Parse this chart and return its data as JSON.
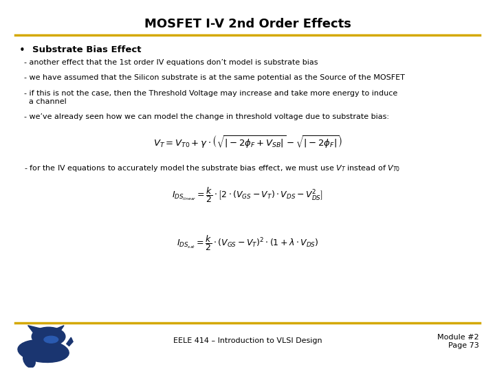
{
  "title": "MOSFET I-V 2nd Order Effects",
  "title_fontsize": 13,
  "title_fontweight": "bold",
  "bg_color": "#ffffff",
  "gold_line_color": "#D4A800",
  "bullet_header": "Substrate Bias Effect",
  "bullet_fontsize": 9.5,
  "body_fontsize": 8.0,
  "lines": [
    "- another effect that the 1st order IV equations don’t model is substrate bias",
    "- we have assumed that the Silicon substrate is at the same potential as the Source of the MOSFET",
    "- if this is not the case, then the Threshold Voltage may increase and take more energy to induce\n  a channel",
    "- we’ve already seen how we can model the change in threshold voltage due to substrate bias:"
  ],
  "line_after_eq1": "- for the IV equations to accurately model the substrate bias effect, we must use $V_T$ instead of $V_{T0}$",
  "footer_text": "EELE 414 – Introduction to VLSI Design",
  "footer_right": "Module #2\nPage 73",
  "footer_fontsize": 8,
  "cat_color": "#1a3570"
}
